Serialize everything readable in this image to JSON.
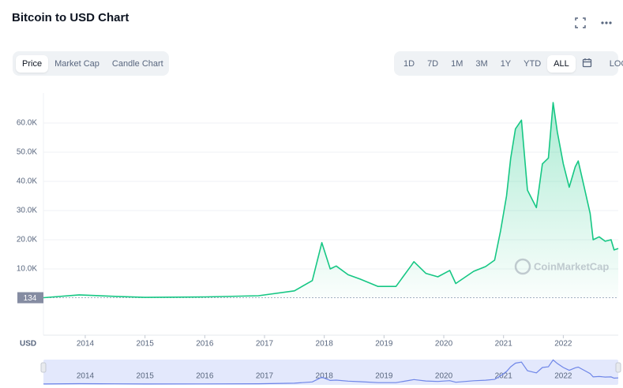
{
  "title": "Bitcoin to USD Chart",
  "tabs": [
    "Price",
    "Market Cap",
    "Candle Chart"
  ],
  "active_tab": 0,
  "ranges": [
    "1D",
    "7D",
    "1M",
    "3M",
    "1Y",
    "YTD",
    "ALL"
  ],
  "active_range": 6,
  "log_button": "LOG",
  "chart_data": {
    "type": "line",
    "currency_label": "USD",
    "watermark": "CoinMarketCap",
    "color": "#16c784",
    "xlim": [
      2013.3,
      2022.92
    ],
    "xticks": [
      2014,
      2015,
      2016,
      2017,
      2018,
      2019,
      2020,
      2021,
      2022
    ],
    "ylim": [
      0,
      70000
    ],
    "yticks": [
      {
        "value": 10000,
        "label": "10.0K"
      },
      {
        "value": 20000,
        "label": "20.0K"
      },
      {
        "value": 30000,
        "label": "30.0K"
      },
      {
        "value": 40000,
        "label": "40.0K"
      },
      {
        "value": 50000,
        "label": "50.0K"
      },
      {
        "value": 60000,
        "label": "60.0K"
      }
    ],
    "grid": true,
    "x": [
      2013.3,
      2013.9,
      2014.5,
      2015.0,
      2016.0,
      2016.9,
      2017.5,
      2017.8,
      2017.96,
      2018.1,
      2018.2,
      2018.4,
      2018.6,
      2018.9,
      2019.2,
      2019.45,
      2019.5,
      2019.7,
      2019.9,
      2020.1,
      2020.2,
      2020.5,
      2020.7,
      2020.85,
      2020.95,
      2021.05,
      2021.12,
      2021.2,
      2021.3,
      2021.4,
      2021.5,
      2021.55,
      2021.65,
      2021.75,
      2021.83,
      2021.9,
      2022.0,
      2022.1,
      2022.2,
      2022.25,
      2022.35,
      2022.45,
      2022.5,
      2022.6,
      2022.7,
      2022.8,
      2022.85,
      2022.92
    ],
    "values": [
      134,
      1100,
      600,
      250,
      400,
      800,
      2500,
      6000,
      19000,
      10000,
      11000,
      8000,
      6500,
      4000,
      4000,
      11000,
      12500,
      8500,
      7300,
      9500,
      5000,
      9200,
      10800,
      13000,
      23000,
      35000,
      48000,
      58000,
      61000,
      37000,
      33000,
      31000,
      46000,
      48000,
      67000,
      57000,
      46000,
      38000,
      45000,
      47000,
      38000,
      29000,
      20000,
      21000,
      19500,
      20000,
      16500,
      17000
    ]
  }
}
